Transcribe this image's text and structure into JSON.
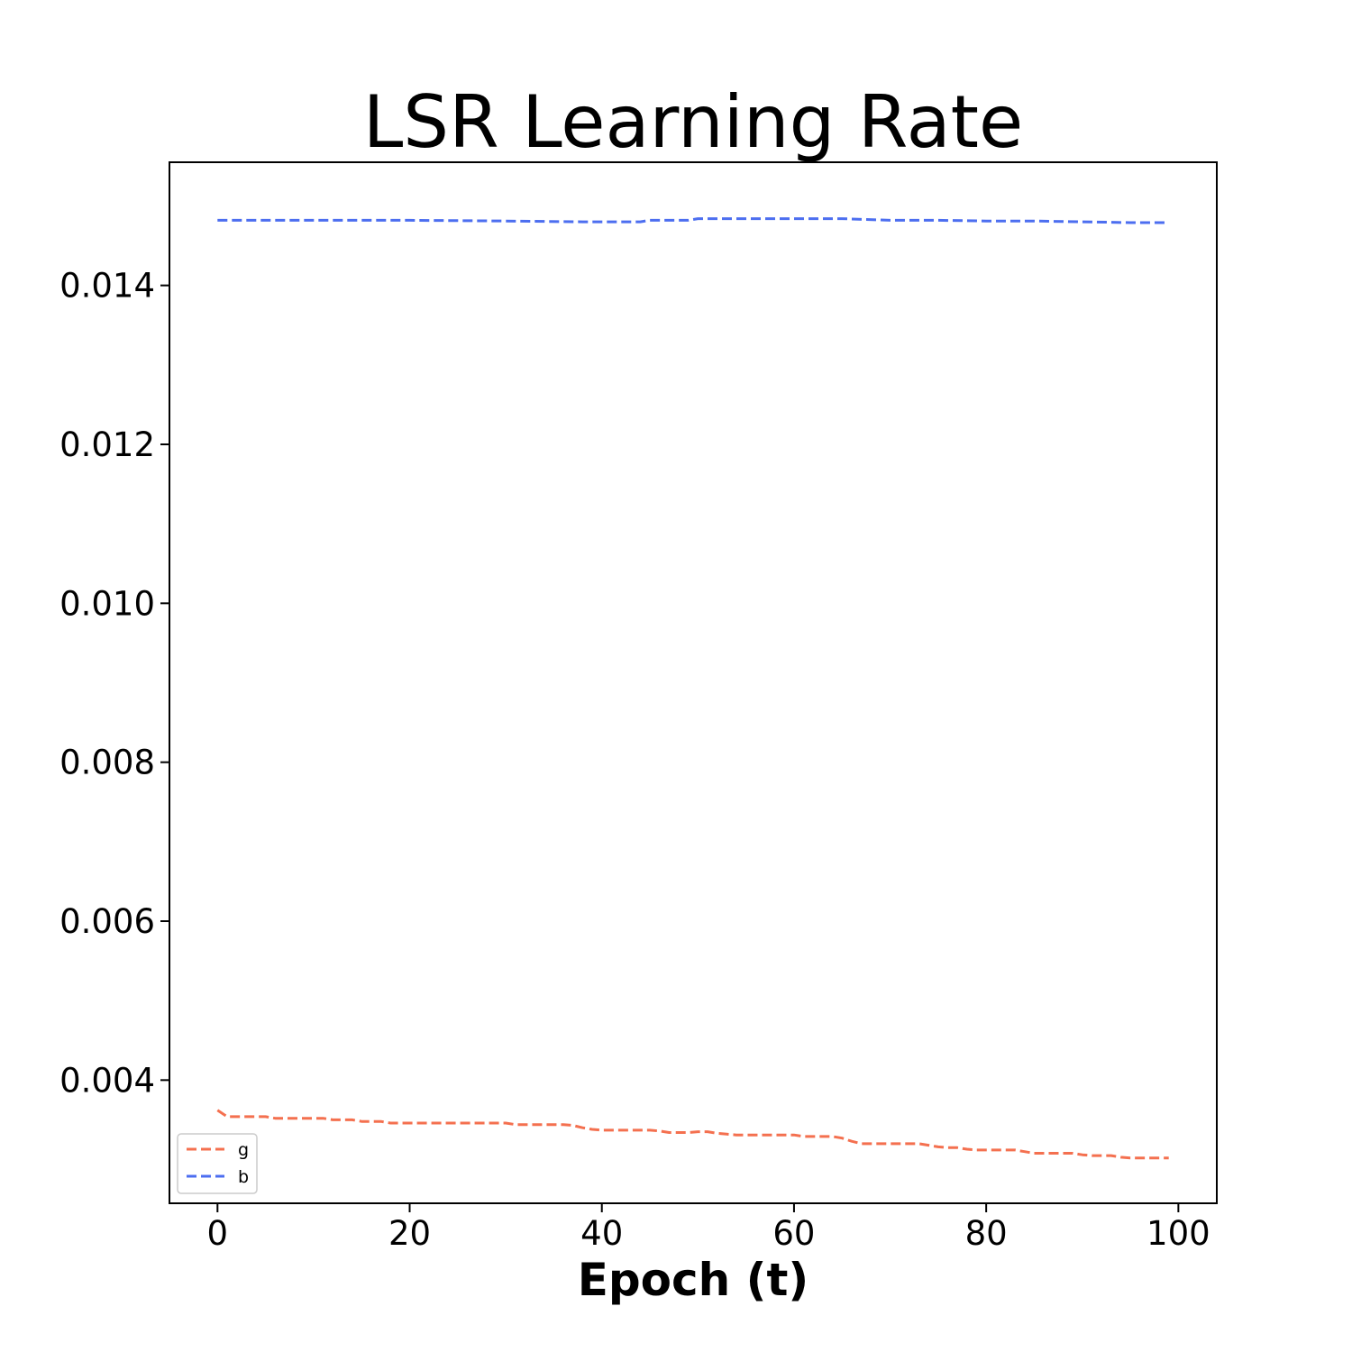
{
  "chart_data": {
    "type": "line",
    "title": "LSR Learning Rate",
    "xlabel": "Epoch (t)",
    "ylabel": "",
    "xlim": [
      -5,
      104
    ],
    "ylim": [
      0.00245,
      0.01555
    ],
    "xticks": [
      0,
      20,
      40,
      60,
      80,
      100
    ],
    "xtick_labels": [
      "0",
      "20",
      "40",
      "60",
      "80",
      "100"
    ],
    "yticks": [
      0.004,
      0.006,
      0.008,
      0.01,
      0.012,
      0.014
    ],
    "ytick_labels": [
      "0.004",
      "0.006",
      "0.008",
      "0.010",
      "0.012",
      "0.014"
    ],
    "grid": false,
    "legend_position": "lower-left",
    "series": [
      {
        "name": "g",
        "color": "#f4704f",
        "dash": "dashed",
        "x": [
          0,
          1,
          5,
          6,
          11,
          12,
          14,
          15,
          17,
          18,
          30,
          31,
          36,
          37,
          38,
          39,
          40,
          44,
          45,
          46,
          47,
          49,
          50,
          51,
          52,
          53,
          54,
          60,
          61,
          64,
          65,
          66,
          67,
          73,
          74,
          75,
          76,
          77,
          78,
          79,
          83,
          84,
          85,
          89,
          90,
          91,
          93,
          94,
          95,
          99
        ],
        "y": [
          0.00362,
          0.00354,
          0.00354,
          0.00352,
          0.00352,
          0.0035,
          0.0035,
          0.00348,
          0.00348,
          0.00346,
          0.00346,
          0.00344,
          0.00344,
          0.00343,
          0.0034,
          0.00338,
          0.00337,
          0.00337,
          0.00337,
          0.00336,
          0.00334,
          0.00334,
          0.00335,
          0.00335,
          0.00333,
          0.00332,
          0.00331,
          0.00331,
          0.00329,
          0.00329,
          0.00327,
          0.00323,
          0.0032,
          0.0032,
          0.00318,
          0.00316,
          0.00315,
          0.00315,
          0.00313,
          0.00312,
          0.00312,
          0.0031,
          0.00308,
          0.00308,
          0.00306,
          0.00305,
          0.00305,
          0.00303,
          0.00302,
          0.00302
        ]
      },
      {
        "name": "b",
        "color": "#4c6ef0",
        "dash": "dashed",
        "x": [
          0,
          10,
          20,
          30,
          38,
          44,
          45,
          49,
          50,
          55,
          60,
          65,
          70,
          75,
          80,
          85,
          90,
          95,
          99
        ],
        "y": [
          0.01482,
          0.01482,
          0.01482,
          0.01481,
          0.0148,
          0.0148,
          0.01482,
          0.01482,
          0.01484,
          0.01484,
          0.01484,
          0.01484,
          0.01482,
          0.01482,
          0.01481,
          0.01481,
          0.0148,
          0.01479,
          0.01479
        ]
      }
    ]
  }
}
